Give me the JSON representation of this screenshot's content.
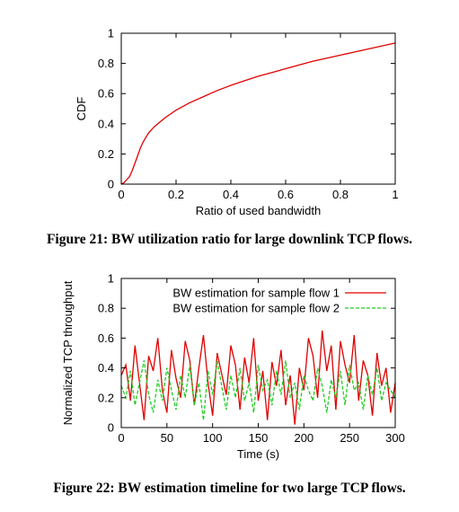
{
  "figures": [
    {
      "caption": "Figure 21: BW utilization ratio for large downlink TCP flows."
    },
    {
      "caption": "Figure 22: BW estimation timeline for two large TCP flows."
    }
  ],
  "chart_data": [
    {
      "type": "line",
      "xlabel": "Ratio of used bandwidth",
      "ylabel": "CDF",
      "xlim": [
        0,
        1
      ],
      "ylim": [
        0,
        1
      ],
      "xticks": [
        0,
        0.2,
        0.4,
        0.6,
        0.8,
        1
      ],
      "xtick_labels": [
        "0",
        "0.2",
        "0.4",
        "0.6",
        "0.8",
        "1"
      ],
      "yticks": [
        0,
        0.2,
        0.4,
        0.6,
        0.8,
        1
      ],
      "ytick_labels": [
        "0",
        "0.2",
        "0.4",
        "0.6",
        "0.8",
        "1"
      ],
      "grid": false,
      "series": [
        {
          "color": "#e00000",
          "x": [
            0,
            0.01,
            0.02,
            0.03,
            0.04,
            0.05,
            0.06,
            0.07,
            0.08,
            0.09,
            0.1,
            0.12,
            0.14,
            0.16,
            0.18,
            0.2,
            0.25,
            0.3,
            0.35,
            0.4,
            0.45,
            0.5,
            0.55,
            0.6,
            0.65,
            0.7,
            0.75,
            0.8,
            0.85,
            0.9,
            0.95,
            1.0
          ],
          "y": [
            0,
            0.01,
            0.03,
            0.05,
            0.09,
            0.14,
            0.19,
            0.24,
            0.28,
            0.31,
            0.34,
            0.38,
            0.41,
            0.44,
            0.465,
            0.49,
            0.54,
            0.58,
            0.62,
            0.655,
            0.685,
            0.715,
            0.74,
            0.765,
            0.79,
            0.815,
            0.835,
            0.855,
            0.875,
            0.895,
            0.915,
            0.935
          ]
        }
      ]
    },
    {
      "type": "line",
      "xlabel": "Time (s)",
      "ylabel": "Normalized TCP throughput",
      "xlim": [
        0,
        300
      ],
      "ylim": [
        0,
        1
      ],
      "xticks": [
        0,
        50,
        100,
        150,
        200,
        250,
        300
      ],
      "xtick_labels": [
        "0",
        "50",
        "100",
        "150",
        "200",
        "250",
        "300"
      ],
      "yticks": [
        0,
        0.2,
        0.4,
        0.6,
        0.8,
        1
      ],
      "ytick_labels": [
        "0",
        "0.2",
        "0.4",
        "0.6",
        "0.8",
        "1"
      ],
      "grid": false,
      "legend": "top-right",
      "series": [
        {
          "name": "BW estimation for sample flow 1",
          "color": "#e00000",
          "dash": "solid",
          "x": [
            0,
            5,
            10,
            15,
            20,
            25,
            30,
            35,
            40,
            45,
            50,
            55,
            60,
            65,
            70,
            75,
            80,
            85,
            90,
            95,
            100,
            105,
            110,
            115,
            120,
            125,
            130,
            135,
            140,
            145,
            150,
            155,
            160,
            165,
            170,
            175,
            180,
            185,
            190,
            195,
            200,
            205,
            210,
            215,
            220,
            225,
            230,
            235,
            240,
            245,
            250,
            255,
            260,
            265,
            270,
            275,
            280,
            285,
            290,
            295,
            300
          ],
          "y": [
            0.35,
            0.42,
            0.18,
            0.55,
            0.3,
            0.05,
            0.48,
            0.38,
            0.6,
            0.25,
            0.1,
            0.52,
            0.33,
            0.2,
            0.58,
            0.45,
            0.15,
            0.4,
            0.62,
            0.3,
            0.08,
            0.5,
            0.36,
            0.22,
            0.55,
            0.42,
            0.12,
            0.47,
            0.3,
            0.6,
            0.18,
            0.38,
            0.05,
            0.44,
            0.28,
            0.52,
            0.15,
            0.35,
            0.02,
            0.4,
            0.25,
            0.6,
            0.48,
            0.2,
            0.65,
            0.38,
            0.55,
            0.12,
            0.58,
            0.42,
            0.3,
            0.62,
            0.18,
            0.45,
            0.35,
            0.08,
            0.5,
            0.28,
            0.4,
            0.1,
            0.3
          ]
        },
        {
          "name": "BW estimation for sample flow 2",
          "color": "#22cc22",
          "dash": "dashed",
          "x": [
            0,
            5,
            10,
            15,
            20,
            25,
            30,
            35,
            40,
            45,
            50,
            55,
            60,
            65,
            70,
            75,
            80,
            85,
            90,
            95,
            100,
            105,
            110,
            115,
            120,
            125,
            130,
            135,
            140,
            145,
            150,
            155,
            160,
            165,
            170,
            175,
            180,
            185,
            190,
            195,
            200,
            205,
            210,
            215,
            220,
            225,
            230,
            235,
            240,
            245,
            250,
            255,
            260,
            265,
            270,
            275,
            280,
            285,
            290,
            295,
            300
          ],
          "y": [
            0.28,
            0.2,
            0.38,
            0.15,
            0.3,
            0.45,
            0.22,
            0.1,
            0.32,
            0.18,
            0.4,
            0.25,
            0.12,
            0.35,
            0.2,
            0.42,
            0.15,
            0.3,
            0.05,
            0.38,
            0.22,
            0.45,
            0.28,
            0.12,
            0.35,
            0.2,
            0.4,
            0.18,
            0.3,
            0.1,
            0.42,
            0.25,
            0.32,
            0.15,
            0.38,
            0.22,
            0.45,
            0.2,
            0.3,
            0.12,
            0.35,
            0.25,
            0.18,
            0.4,
            0.28,
            0.1,
            0.32,
            0.2,
            0.38,
            0.15,
            0.42,
            0.25,
            0.3,
            0.12,
            0.35,
            0.22,
            0.4,
            0.18,
            0.3,
            0.25,
            0.2
          ]
        }
      ]
    }
  ]
}
